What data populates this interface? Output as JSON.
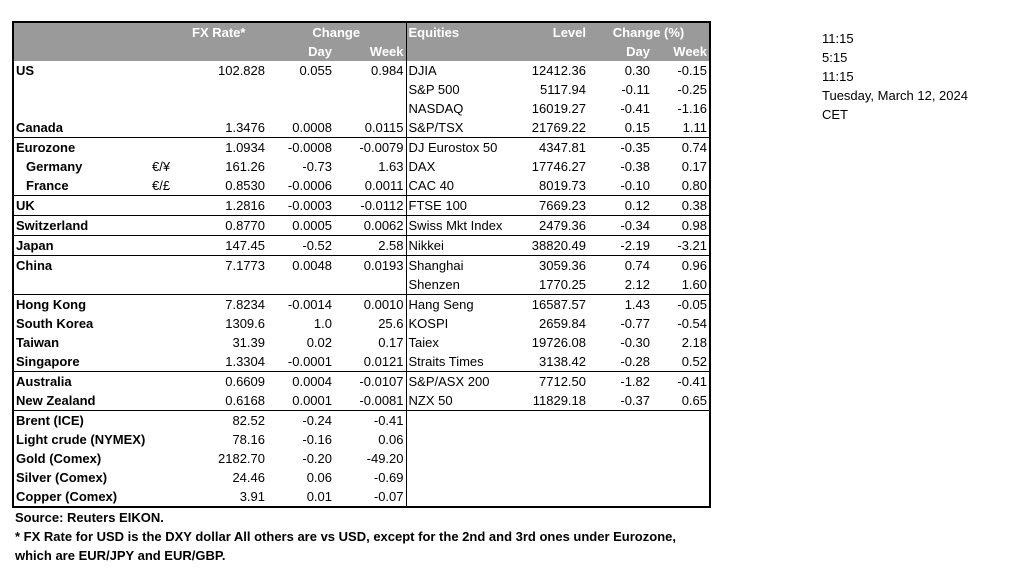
{
  "headers": {
    "fx_rate": "FX Rate*",
    "change": "Change",
    "day": "Day",
    "week": "Week",
    "equities": "Equities",
    "level": "Level",
    "change_pct": "Change (%)",
    "eq_day": "Day",
    "eq_week": "Week"
  },
  "rows": [
    {
      "name": "US",
      "bold": true,
      "indent": false,
      "sym": "",
      "fx": "102.828",
      "day": "0.055",
      "week": "0.984",
      "eq": "DJIA",
      "level": "12412.36",
      "eday": "0.30",
      "eweek": "-0.15",
      "top": false
    },
    {
      "name": "",
      "bold": false,
      "indent": false,
      "sym": "",
      "fx": "",
      "day": "",
      "week": "",
      "eq": "S&P 500",
      "level": "5117.94",
      "eday": "-0.11",
      "eweek": "-0.25",
      "top": false
    },
    {
      "name": "",
      "bold": false,
      "indent": false,
      "sym": "",
      "fx": "",
      "day": "",
      "week": "",
      "eq": "NASDAQ",
      "level": "16019.27",
      "eday": "-0.41",
      "eweek": "-1.16",
      "top": false
    },
    {
      "name": "Canada",
      "bold": true,
      "indent": false,
      "sym": "",
      "fx": "1.3476",
      "day": "0.0008",
      "week": "0.0115",
      "eq": "S&P/TSX",
      "level": "21769.22",
      "eday": "0.15",
      "eweek": "1.11",
      "top": false
    },
    {
      "name": "Eurozone",
      "bold": true,
      "indent": false,
      "sym": "",
      "fx": "1.0934",
      "day": "-0.0008",
      "week": "-0.0079",
      "eq": "DJ Eurostox 50",
      "level": "4347.81",
      "eday": "-0.35",
      "eweek": "0.74",
      "top": true
    },
    {
      "name": "Germany",
      "bold": true,
      "indent": true,
      "sym": "€/¥",
      "fx": "161.26",
      "day": "-0.73",
      "week": "1.63",
      "eq": "DAX",
      "level": "17746.27",
      "eday": "-0.38",
      "eweek": "0.17",
      "top": false
    },
    {
      "name": "France",
      "bold": true,
      "indent": true,
      "sym": "€/£",
      "fx": "0.8530",
      "day": "-0.0006",
      "week": "0.0011",
      "eq": "CAC 40",
      "level": "8019.73",
      "eday": "-0.10",
      "eweek": "0.80",
      "top": false
    },
    {
      "name": "UK",
      "bold": true,
      "indent": false,
      "sym": "",
      "fx": "1.2816",
      "day": "-0.0003",
      "week": "-0.0112",
      "eq": "FTSE 100",
      "level": "7669.23",
      "eday": "0.12",
      "eweek": "0.38",
      "top": true
    },
    {
      "name": "Switzerland",
      "bold": true,
      "indent": false,
      "sym": "",
      "fx": "0.8770",
      "day": "0.0005",
      "week": "0.0062",
      "eq": "Swiss Mkt Index",
      "level": "2479.36",
      "eday": "-0.34",
      "eweek": "0.98",
      "top": true
    },
    {
      "name": "Japan",
      "bold": true,
      "indent": false,
      "sym": "",
      "fx": "147.45",
      "day": "-0.52",
      "week": "2.58",
      "eq": "Nikkei",
      "level": "38820.49",
      "eday": "-2.19",
      "eweek": "-3.21",
      "top": true
    },
    {
      "name": "China",
      "bold": true,
      "indent": false,
      "sym": "",
      "fx": "7.1773",
      "day": "0.0048",
      "week": "0.0193",
      "eq": "Shanghai",
      "level": "3059.36",
      "eday": "0.74",
      "eweek": "0.96",
      "top": true
    },
    {
      "name": "",
      "bold": false,
      "indent": false,
      "sym": "",
      "fx": "",
      "day": "",
      "week": "",
      "eq": "Shenzen",
      "level": "1770.25",
      "eday": "2.12",
      "eweek": "1.60",
      "top": false
    },
    {
      "name": "Hong Kong",
      "bold": true,
      "indent": false,
      "sym": "",
      "fx": "7.8234",
      "day": "-0.0014",
      "week": "0.0010",
      "eq": "Hang Seng",
      "level": "16587.57",
      "eday": "1.43",
      "eweek": "-0.05",
      "top": true
    },
    {
      "name": "South Korea",
      "bold": true,
      "indent": false,
      "sym": "",
      "fx": "1309.6",
      "day": "1.0",
      "week": "25.6",
      "eq": "KOSPI",
      "level": "2659.84",
      "eday": "-0.77",
      "eweek": "-0.54",
      "top": false
    },
    {
      "name": "Taiwan",
      "bold": true,
      "indent": false,
      "sym": "",
      "fx": "31.39",
      "day": "0.02",
      "week": "0.17",
      "eq": "Taiex",
      "level": "19726.08",
      "eday": "-0.30",
      "eweek": "2.18",
      "top": false
    },
    {
      "name": "Singapore",
      "bold": true,
      "indent": false,
      "sym": "",
      "fx": "1.3304",
      "day": "-0.0001",
      "week": "0.0121",
      "eq": "Straits Times",
      "level": "3138.42",
      "eday": "-0.28",
      "eweek": "0.52",
      "top": false
    },
    {
      "name": "Australia",
      "bold": true,
      "indent": false,
      "sym": "",
      "fx": "0.6609",
      "day": "0.0004",
      "week": "-0.0107",
      "eq": "S&P/ASX  200",
      "level": "7712.50",
      "eday": "-1.82",
      "eweek": "-0.41",
      "top": true
    },
    {
      "name": "New Zealand",
      "bold": true,
      "indent": false,
      "sym": "",
      "fx": "0.6168",
      "day": "0.0001",
      "week": "-0.0081",
      "eq": "NZX 50",
      "level": "11829.18",
      "eday": "-0.37",
      "eweek": "0.65",
      "top": false
    },
    {
      "name": "Brent (ICE)",
      "bold": true,
      "indent": false,
      "sym": "",
      "fx": "82.52",
      "day": "-0.24",
      "week": "-0.41",
      "eq": "",
      "level": "",
      "eday": "",
      "eweek": "",
      "top": true
    },
    {
      "name": "Light crude (NYMEX)",
      "bold": true,
      "indent": false,
      "sym": "",
      "fx": "78.16",
      "day": "-0.16",
      "week": "0.06",
      "eq": "",
      "level": "",
      "eday": "",
      "eweek": "",
      "top": false
    },
    {
      "name": "Gold (Comex)",
      "bold": true,
      "indent": false,
      "sym": "",
      "fx": "2182.70",
      "day": "-0.20",
      "week": "-49.20",
      "eq": "",
      "level": "",
      "eday": "",
      "eweek": "",
      "top": false
    },
    {
      "name": "Silver (Comex)",
      "bold": true,
      "indent": false,
      "sym": "",
      "fx": "24.46",
      "day": "0.06",
      "week": "-0.69",
      "eq": "",
      "level": "",
      "eday": "",
      "eweek": "",
      "top": false
    },
    {
      "name": "Copper (Comex)",
      "bold": true,
      "indent": false,
      "sym": "",
      "fx": "3.91",
      "day": "0.01",
      "week": "-0.07",
      "eq": "",
      "level": "",
      "eday": "",
      "eweek": "",
      "top": false
    }
  ],
  "side": [
    "11:15",
    "5:15",
    "11:15",
    "Tuesday, March 12, 2024",
    "CET"
  ],
  "notes": {
    "source": "Source:  Reuters EIKON.",
    "footnote1": "* FX Rate for USD is the DXY dollar  All others are vs USD, except for the 2nd and 3rd ones under Eurozone,",
    "footnote2": " which are EUR/JPY and EUR/GBP."
  }
}
